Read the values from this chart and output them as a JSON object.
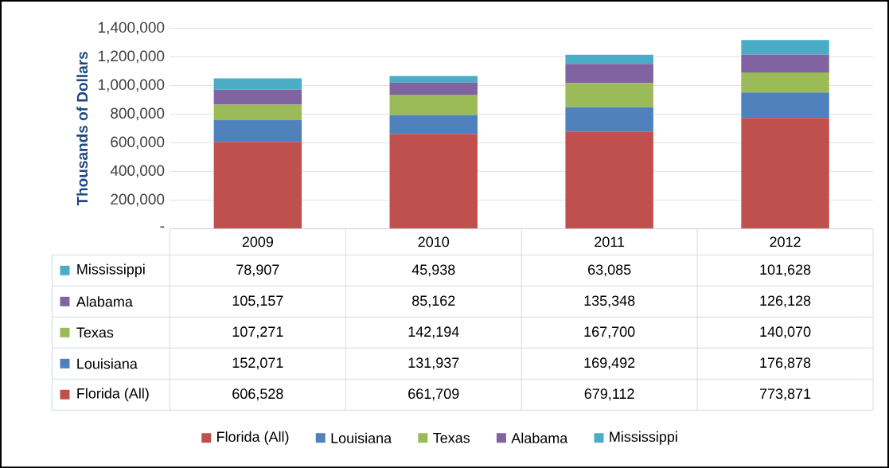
{
  "chart_data": {
    "type": "bar",
    "stacked": true,
    "ylabel": "Thousands of Dollars",
    "categories": [
      "2009",
      "2010",
      "2011",
      "2012"
    ],
    "series": [
      {
        "name": "Florida (All)",
        "color": "#c0504d",
        "values": [
          606528,
          661709,
          679112,
          773871
        ],
        "value_labels": [
          "606,528",
          "661,709",
          "679,112",
          "773,871"
        ]
      },
      {
        "name": "Louisiana",
        "color": "#4f81bd",
        "values": [
          152071,
          131937,
          169492,
          176878
        ],
        "value_labels": [
          "152,071",
          "131,937",
          "169,492",
          "176,878"
        ]
      },
      {
        "name": "Texas",
        "color": "#9bbb59",
        "values": [
          107271,
          142194,
          167700,
          140070
        ],
        "value_labels": [
          "107,271",
          "142,194",
          "167,700",
          "140,070"
        ]
      },
      {
        "name": "Alabama",
        "color": "#8064a2",
        "values": [
          105157,
          85162,
          135348,
          126128
        ],
        "value_labels": [
          "105,157",
          "85,162",
          "135,348",
          "126,128"
        ]
      },
      {
        "name": "Mississippi",
        "color": "#4bacc6",
        "values": [
          78907,
          45938,
          63085,
          101628
        ],
        "value_labels": [
          "78,907",
          "45,938",
          "63,085",
          "101,628"
        ]
      }
    ],
    "ylim": [
      0,
      1400000
    ],
    "yticks": [
      {
        "value": 0,
        "label": "-"
      },
      {
        "value": 200000,
        "label": "200,000"
      },
      {
        "value": 400000,
        "label": "400,000"
      },
      {
        "value": 600000,
        "label": "600,000"
      },
      {
        "value": 800000,
        "label": "800,000"
      },
      {
        "value": 1000000,
        "label": "1,000,000"
      },
      {
        "value": 1200000,
        "label": "1,200,000"
      },
      {
        "value": 1400000,
        "label": "1,400,000"
      }
    ],
    "grid": "y",
    "legend": "bottom"
  }
}
